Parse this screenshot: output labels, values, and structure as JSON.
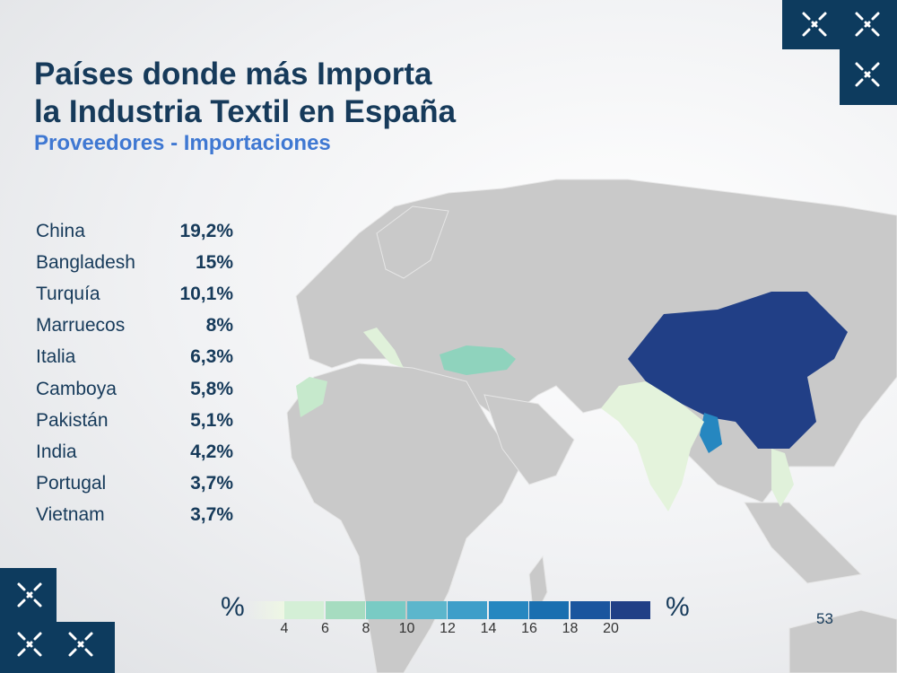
{
  "header": {
    "title_line1": "Países donde más Importa",
    "title_line2": "la Industria Textil en España",
    "subtitle": "Proveedores - Importaciones"
  },
  "chart_data": {
    "type": "choropleth-map",
    "title": "Países donde más Importa la Industria Textil en España",
    "subtitle": "Proveedores - Importaciones",
    "categories": [
      "China",
      "Bangladesh",
      "Turquía",
      "Marruecos",
      "Italia",
      "Camboya",
      "Pakistán",
      "India",
      "Portugal",
      "Vietnam"
    ],
    "labels": [
      "19,2%",
      "15%",
      "10,1%",
      "8%",
      "6,3%",
      "5,8%",
      "5,1%",
      "4,2%",
      "3,7%",
      "3,7%"
    ],
    "values": [
      19.2,
      15,
      10.1,
      8,
      6.3,
      5.8,
      5.1,
      4.2,
      3.7,
      3.7
    ],
    "legend": {
      "unit": "%",
      "ticks": [
        "4",
        "6",
        "8",
        "10",
        "12",
        "14",
        "16",
        "18",
        "20"
      ],
      "colors": [
        "#d4efd6",
        "#a6dcc0",
        "#79cbc4",
        "#5cb6cc",
        "#3e9ec9",
        "#2687c0",
        "#1a6fb0",
        "#1a559e",
        "#213f86"
      ]
    }
  },
  "footer": {
    "page_number": "53"
  }
}
